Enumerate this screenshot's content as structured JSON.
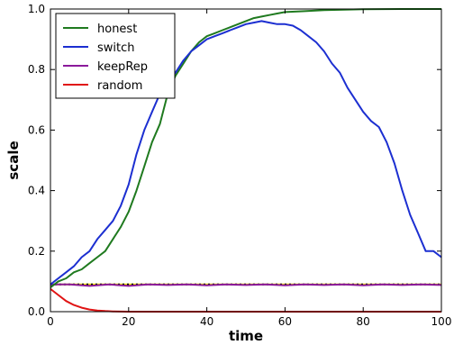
{
  "chart_data": {
    "type": "line",
    "xlabel": "time",
    "ylabel": "scale",
    "xlim": [
      0,
      100
    ],
    "ylim": [
      0.0,
      1.0
    ],
    "x_ticks": [
      "0",
      "20",
      "40",
      "60",
      "80",
      "100"
    ],
    "y_ticks": [
      "0.0",
      "0.2",
      "0.4",
      "0.6",
      "0.8",
      "1.0"
    ],
    "grid": false,
    "legend_position": "top-left",
    "series": [
      {
        "name": "honest",
        "color": "#1f7a1f",
        "points": [
          [
            0,
            0.08
          ],
          [
            2,
            0.1
          ],
          [
            4,
            0.11
          ],
          [
            6,
            0.13
          ],
          [
            8,
            0.14
          ],
          [
            10,
            0.16
          ],
          [
            12,
            0.18
          ],
          [
            14,
            0.2
          ],
          [
            16,
            0.24
          ],
          [
            18,
            0.28
          ],
          [
            20,
            0.33
          ],
          [
            22,
            0.4
          ],
          [
            24,
            0.48
          ],
          [
            26,
            0.56
          ],
          [
            28,
            0.62
          ],
          [
            30,
            0.72
          ],
          [
            32,
            0.78
          ],
          [
            34,
            0.82
          ],
          [
            36,
            0.86
          ],
          [
            38,
            0.89
          ],
          [
            40,
            0.91
          ],
          [
            42,
            0.92
          ],
          [
            44,
            0.93
          ],
          [
            46,
            0.94
          ],
          [
            48,
            0.95
          ],
          [
            50,
            0.96
          ],
          [
            52,
            0.97
          ],
          [
            54,
            0.975
          ],
          [
            56,
            0.98
          ],
          [
            58,
            0.985
          ],
          [
            60,
            0.99
          ],
          [
            65,
            0.993
          ],
          [
            70,
            0.996
          ],
          [
            75,
            0.998
          ],
          [
            80,
            0.999
          ],
          [
            90,
            1.0
          ],
          [
            100,
            1.0
          ]
        ]
      },
      {
        "name": "switch",
        "color": "#1c2fd1",
        "points": [
          [
            0,
            0.09
          ],
          [
            2,
            0.11
          ],
          [
            4,
            0.13
          ],
          [
            6,
            0.15
          ],
          [
            8,
            0.18
          ],
          [
            10,
            0.2
          ],
          [
            12,
            0.24
          ],
          [
            14,
            0.27
          ],
          [
            16,
            0.3
          ],
          [
            18,
            0.35
          ],
          [
            20,
            0.42
          ],
          [
            22,
            0.52
          ],
          [
            24,
            0.6
          ],
          [
            26,
            0.66
          ],
          [
            28,
            0.72
          ],
          [
            30,
            0.76
          ],
          [
            32,
            0.79
          ],
          [
            34,
            0.83
          ],
          [
            36,
            0.86
          ],
          [
            38,
            0.88
          ],
          [
            40,
            0.9
          ],
          [
            42,
            0.91
          ],
          [
            44,
            0.92
          ],
          [
            46,
            0.93
          ],
          [
            48,
            0.94
          ],
          [
            50,
            0.95
          ],
          [
            52,
            0.955
          ],
          [
            54,
            0.96
          ],
          [
            56,
            0.955
          ],
          [
            58,
            0.95
          ],
          [
            60,
            0.95
          ],
          [
            62,
            0.945
          ],
          [
            64,
            0.93
          ],
          [
            66,
            0.91
          ],
          [
            68,
            0.89
          ],
          [
            70,
            0.86
          ],
          [
            72,
            0.82
          ],
          [
            74,
            0.79
          ],
          [
            76,
            0.74
          ],
          [
            78,
            0.7
          ],
          [
            80,
            0.66
          ],
          [
            82,
            0.63
          ],
          [
            84,
            0.61
          ],
          [
            86,
            0.56
          ],
          [
            88,
            0.49
          ],
          [
            90,
            0.4
          ],
          [
            92,
            0.32
          ],
          [
            94,
            0.26
          ],
          [
            96,
            0.2
          ],
          [
            98,
            0.2
          ],
          [
            100,
            0.18
          ]
        ]
      },
      {
        "name": "keepRep",
        "color": "#8b1a9b",
        "points": [
          [
            0,
            0.09
          ],
          [
            5,
            0.09
          ],
          [
            10,
            0.085
          ],
          [
            15,
            0.09
          ],
          [
            20,
            0.085
          ],
          [
            25,
            0.09
          ],
          [
            30,
            0.088
          ],
          [
            35,
            0.09
          ],
          [
            40,
            0.087
          ],
          [
            45,
            0.09
          ],
          [
            50,
            0.088
          ],
          [
            55,
            0.09
          ],
          [
            60,
            0.087
          ],
          [
            65,
            0.09
          ],
          [
            70,
            0.088
          ],
          [
            75,
            0.09
          ],
          [
            80,
            0.087
          ],
          [
            85,
            0.09
          ],
          [
            90,
            0.088
          ],
          [
            95,
            0.09
          ],
          [
            100,
            0.088
          ]
        ]
      },
      {
        "name": "random",
        "color": "#e01414",
        "points": [
          [
            0,
            0.075
          ],
          [
            2,
            0.055
          ],
          [
            4,
            0.035
          ],
          [
            6,
            0.022
          ],
          [
            8,
            0.013
          ],
          [
            10,
            0.007
          ],
          [
            12,
            0.004
          ],
          [
            14,
            0.002
          ],
          [
            16,
            0.001
          ],
          [
            20,
            0.0
          ],
          [
            30,
            0.0
          ],
          [
            50,
            0.0
          ],
          [
            100,
            0.0
          ]
        ]
      }
    ],
    "reference_line": {
      "y": 0.09,
      "color": "#000000",
      "highlight": "#e8e000",
      "style": "dotted"
    }
  }
}
